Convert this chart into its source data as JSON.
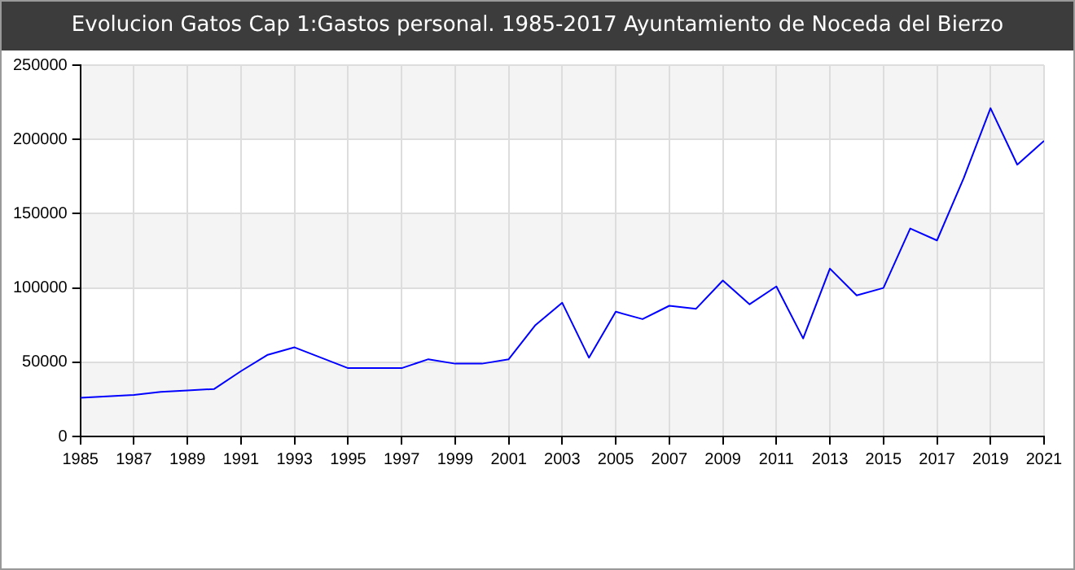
{
  "chart_data": {
    "type": "line",
    "title": "Evolucion Gatos Cap 1:Gastos personal. 1985-2017 Ayuntamiento de Noceda del Bierzo",
    "x": [
      1985,
      1986,
      1987,
      1988,
      1989,
      1990,
      1991,
      1992,
      1993,
      1994,
      1995,
      1996,
      1997,
      1998,
      1999,
      2000,
      2001,
      2002,
      2003,
      2004,
      2005,
      2006,
      2007,
      2008,
      2009,
      2010,
      2011,
      2012,
      2013,
      2014,
      2015,
      2016,
      2017,
      2018,
      2019,
      2020,
      2021
    ],
    "series": [
      {
        "color": "#0000ff",
        "values": [
          26000,
          27000,
          28000,
          30000,
          31000,
          32000,
          44000,
          55000,
          60000,
          53000,
          46000,
          46000,
          46000,
          52000,
          49000,
          49000,
          52000,
          75000,
          90000,
          53000,
          84000,
          79000,
          88000,
          86000,
          105000,
          89000,
          101000,
          66000,
          113000,
          95000,
          100000,
          140000,
          132000,
          174000,
          221000,
          183000,
          199000
        ]
      }
    ],
    "xlim": [
      1985,
      2021
    ],
    "xticks": [
      1985,
      1987,
      1989,
      1991,
      1993,
      1995,
      1997,
      1999,
      2001,
      2003,
      2005,
      2007,
      2009,
      2011,
      2013,
      2015,
      2017,
      2019,
      2021
    ],
    "ylim": [
      0,
      250000
    ],
    "yticks": [
      0,
      50000,
      100000,
      150000,
      200000,
      250000
    ],
    "grid": true,
    "legend": false,
    "marker": "none",
    "line_style": "solid"
  }
}
